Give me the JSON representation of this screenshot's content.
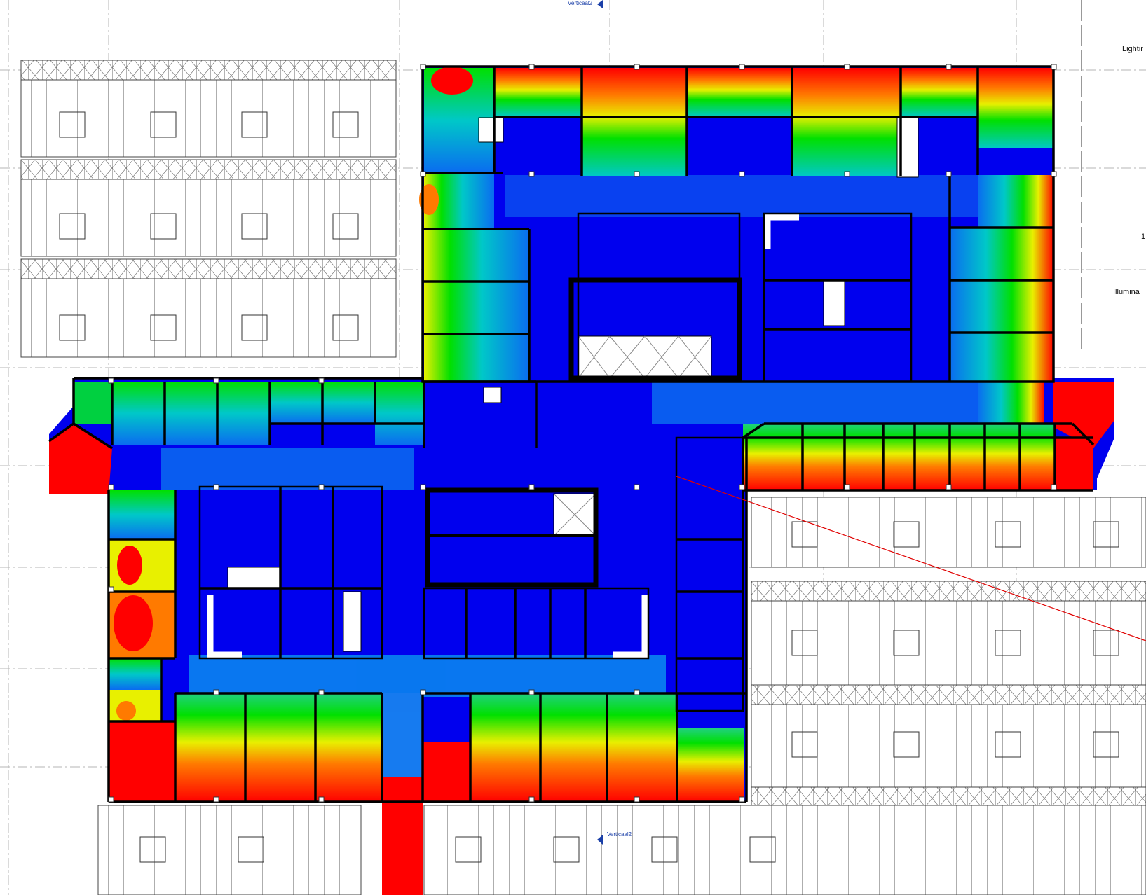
{
  "section_marker_top": "Verticaal2",
  "section_marker_bottom": "Verticaal2",
  "side_label_top": "Lightir",
  "side_label_mid": "1",
  "side_label_bottom": "Illumina",
  "colors": {
    "red": "#ff0000",
    "orange": "#ff7a00",
    "yellow": "#e8f000",
    "green": "#00e000",
    "cyan": "#00b0e8",
    "blue_light": "#0a6cf0",
    "blue": "#0000ee",
    "wall": "#000000",
    "grid": "#b0b0b0",
    "annotation": "#1a3fa8",
    "section_line": "#e00000"
  }
}
